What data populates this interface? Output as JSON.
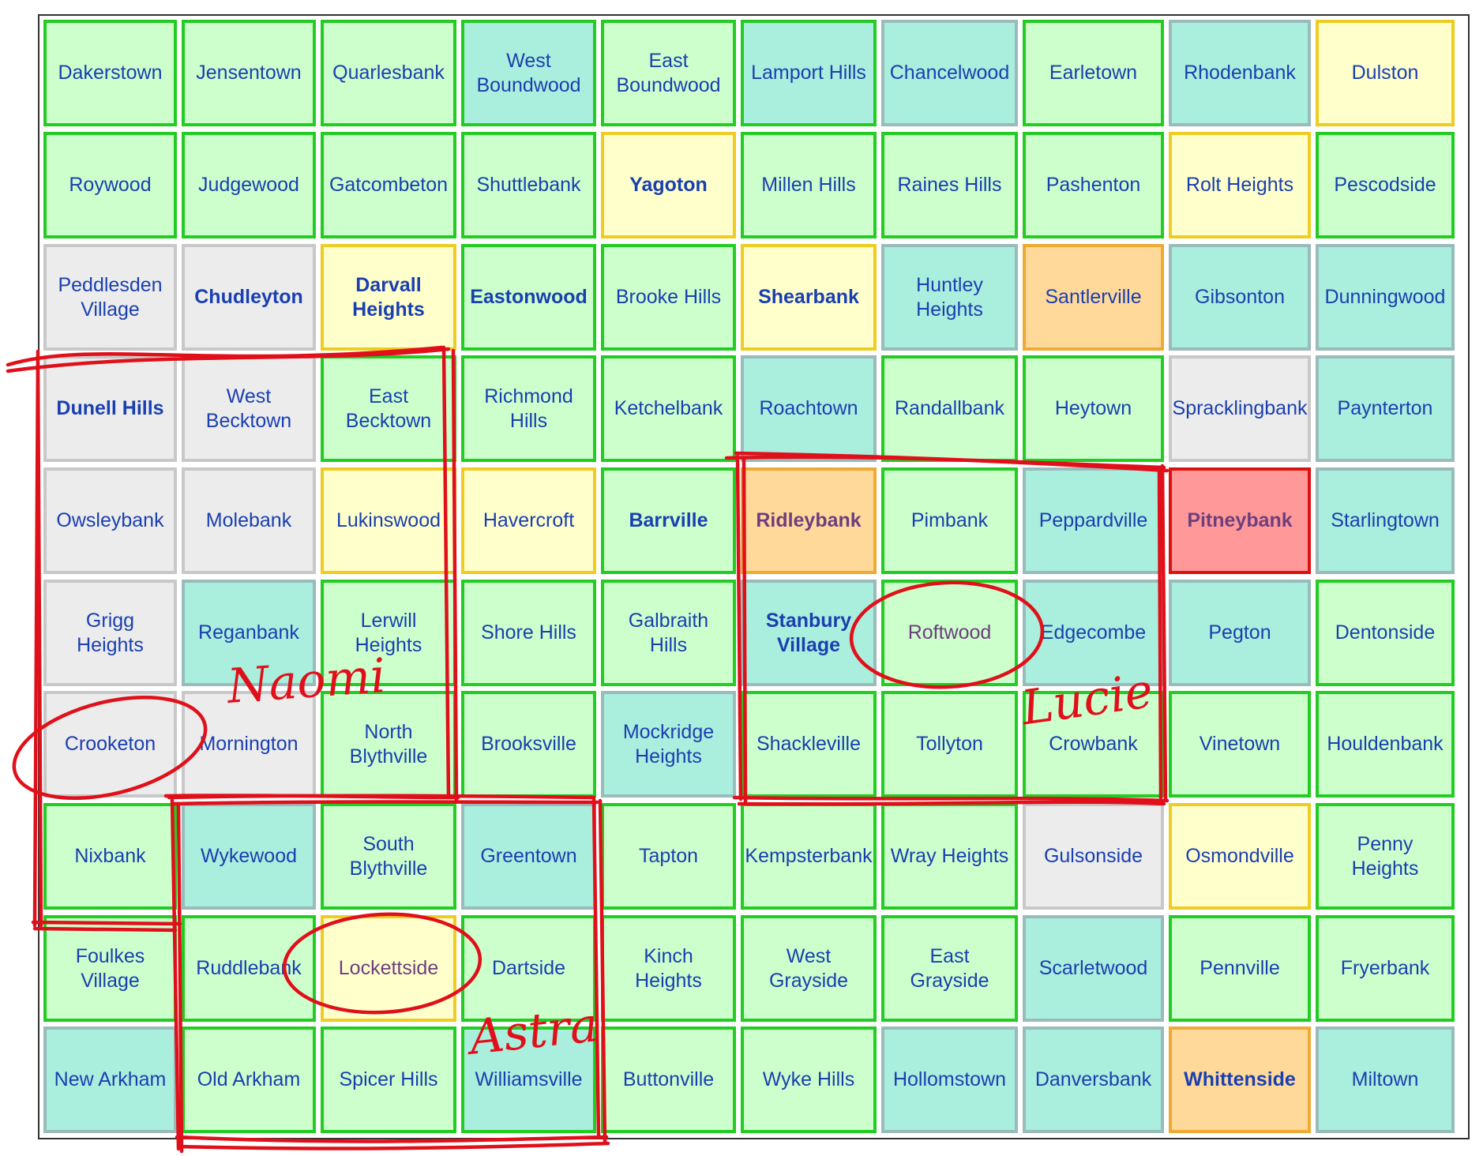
{
  "rows": [
    [
      {
        "name": "Dakerstown",
        "fill": "green"
      },
      {
        "name": "Jensentown",
        "fill": "green"
      },
      {
        "name": "Quarlesbank",
        "fill": "green"
      },
      {
        "name": "West Boundwood",
        "fill": "teal",
        "border": "green"
      },
      {
        "name": "East Boundwood",
        "fill": "green"
      },
      {
        "name": "Lamport Hills",
        "fill": "teal",
        "border": "green"
      },
      {
        "name": "Chancelwood",
        "fill": "teal"
      },
      {
        "name": "Earletown",
        "fill": "green"
      },
      {
        "name": "Rhodenbank",
        "fill": "teal"
      },
      {
        "name": "Dulston",
        "fill": "yellow"
      }
    ],
    [
      {
        "name": "Roywood",
        "fill": "green"
      },
      {
        "name": "Judgewood",
        "fill": "green"
      },
      {
        "name": "Gatcombeton",
        "fill": "green"
      },
      {
        "name": "Shuttlebank",
        "fill": "green"
      },
      {
        "name": "Yagoton",
        "fill": "yellow",
        "bold": true
      },
      {
        "name": "Millen Hills",
        "fill": "green"
      },
      {
        "name": "Raines Hills",
        "fill": "green"
      },
      {
        "name": "Pashenton",
        "fill": "green"
      },
      {
        "name": "Rolt Heights",
        "fill": "yellow"
      },
      {
        "name": "Pescodside",
        "fill": "green"
      }
    ],
    [
      {
        "name": "Peddlesden Village",
        "fill": "grey"
      },
      {
        "name": "Chudleyton",
        "fill": "grey",
        "bold": true
      },
      {
        "name": "Darvall Heights",
        "fill": "yellow",
        "bold": true
      },
      {
        "name": "Eastonwood",
        "fill": "green",
        "bold": true
      },
      {
        "name": "Brooke Hills",
        "fill": "green"
      },
      {
        "name": "Shearbank",
        "fill": "yellow",
        "bold": true
      },
      {
        "name": "Huntley Heights",
        "fill": "teal"
      },
      {
        "name": "Santlerville",
        "fill": "orange"
      },
      {
        "name": "Gibsonton",
        "fill": "teal"
      },
      {
        "name": "Dunningwood",
        "fill": "teal"
      }
    ],
    [
      {
        "name": "Dunell Hills",
        "fill": "grey",
        "bold": true
      },
      {
        "name": "West Becktown",
        "fill": "grey"
      },
      {
        "name": "East Becktown",
        "fill": "green"
      },
      {
        "name": "Richmond Hills",
        "fill": "green"
      },
      {
        "name": "Ketchelbank",
        "fill": "green"
      },
      {
        "name": "Roachtown",
        "fill": "teal"
      },
      {
        "name": "Randallbank",
        "fill": "green"
      },
      {
        "name": "Heytown",
        "fill": "green"
      },
      {
        "name": "Spracklingbank",
        "fill": "grey"
      },
      {
        "name": "Paynterton",
        "fill": "teal"
      }
    ],
    [
      {
        "name": "Owsleybank",
        "fill": "grey"
      },
      {
        "name": "Molebank",
        "fill": "grey"
      },
      {
        "name": "Lukinswood",
        "fill": "yellow"
      },
      {
        "name": "Havercroft",
        "fill": "yellow"
      },
      {
        "name": "Barrville",
        "fill": "green",
        "bold": true
      },
      {
        "name": "Ridleybank",
        "fill": "orange",
        "bold": true,
        "faded": true
      },
      {
        "name": "Pimbank",
        "fill": "green"
      },
      {
        "name": "Peppardville",
        "fill": "teal"
      },
      {
        "name": "Pitneybank",
        "fill": "red",
        "bold": true,
        "faded": true
      },
      {
        "name": "Starlingtown",
        "fill": "teal"
      }
    ],
    [
      {
        "name": "Grigg Heights",
        "fill": "grey"
      },
      {
        "name": "Reganbank",
        "fill": "teal"
      },
      {
        "name": "Lerwill Heights",
        "fill": "green"
      },
      {
        "name": "Shore Hills",
        "fill": "green"
      },
      {
        "name": "Galbraith Hills",
        "fill": "green"
      },
      {
        "name": "Stanbury Village",
        "fill": "teal",
        "bold": true
      },
      {
        "name": "Roftwood",
        "fill": "green",
        "faded": true
      },
      {
        "name": "Edgecombe",
        "fill": "teal"
      },
      {
        "name": "Pegton",
        "fill": "teal"
      },
      {
        "name": "Dentonside",
        "fill": "green"
      }
    ],
    [
      {
        "name": "Crooketon",
        "fill": "grey"
      },
      {
        "name": "Mornington",
        "fill": "grey"
      },
      {
        "name": "North Blythville",
        "fill": "green"
      },
      {
        "name": "Brooksville",
        "fill": "green"
      },
      {
        "name": "Mockridge Heights",
        "fill": "teal"
      },
      {
        "name": "Shackleville",
        "fill": "green"
      },
      {
        "name": "Tollyton",
        "fill": "green"
      },
      {
        "name": "Crowbank",
        "fill": "green"
      },
      {
        "name": "Vinetown",
        "fill": "green"
      },
      {
        "name": "Houldenbank",
        "fill": "green"
      }
    ],
    [
      {
        "name": "Nixbank",
        "fill": "green"
      },
      {
        "name": "Wykewood",
        "fill": "teal"
      },
      {
        "name": "South Blythville",
        "fill": "green"
      },
      {
        "name": "Greentown",
        "fill": "teal"
      },
      {
        "name": "Tapton",
        "fill": "green"
      },
      {
        "name": "Kempsterbank",
        "fill": "green"
      },
      {
        "name": "Wray Heights",
        "fill": "green"
      },
      {
        "name": "Gulsonside",
        "fill": "grey"
      },
      {
        "name": "Osmondville",
        "fill": "yellow"
      },
      {
        "name": "Penny Heights",
        "fill": "green"
      }
    ],
    [
      {
        "name": "Foulkes Village",
        "fill": "green"
      },
      {
        "name": "Ruddlebank",
        "fill": "green"
      },
      {
        "name": "Lockettside",
        "fill": "yellow",
        "faded": true
      },
      {
        "name": "Dartside",
        "fill": "green"
      },
      {
        "name": "Kinch Heights",
        "fill": "green"
      },
      {
        "name": "West Grayside",
        "fill": "green"
      },
      {
        "name": "East Grayside",
        "fill": "green"
      },
      {
        "name": "Scarletwood",
        "fill": "teal"
      },
      {
        "name": "Pennville",
        "fill": "green"
      },
      {
        "name": "Fryerbank",
        "fill": "green"
      }
    ],
    [
      {
        "name": "New Arkham",
        "fill": "teal"
      },
      {
        "name": "Old Arkham",
        "fill": "green"
      },
      {
        "name": "Spicer Hills",
        "fill": "green"
      },
      {
        "name": "Williamsville",
        "fill": "teal",
        "border": "green"
      },
      {
        "name": "Buttonville",
        "fill": "green"
      },
      {
        "name": "Wyke Hills",
        "fill": "green"
      },
      {
        "name": "Hollomstown",
        "fill": "teal"
      },
      {
        "name": "Danversbank",
        "fill": "teal"
      },
      {
        "name": "Whittenside",
        "fill": "orange",
        "bold": true
      },
      {
        "name": "Miltown",
        "fill": "teal"
      }
    ]
  ],
  "annotations": {
    "naomi": "Naomi",
    "astra": "Astra",
    "lucie": "Lucie"
  },
  "colors": {
    "ink": "#e0101a",
    "green": "#ccffcc",
    "teal": "#aaeedd",
    "yellow": "#ffffcc",
    "orange": "#ffd99a",
    "red": "#ff9999",
    "grey": "#ececec",
    "text": "#1a3fb0"
  }
}
